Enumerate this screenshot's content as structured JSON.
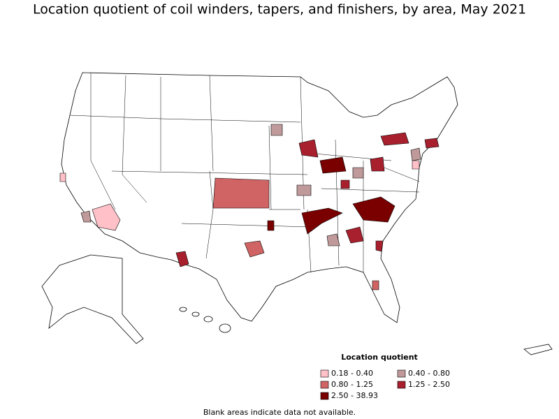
{
  "title": "Location quotient of coil winders, tapers, and finishers, by area, May 2021",
  "legend": {
    "title": "Location quotient",
    "items": [
      {
        "label": "0.18 - 0.40",
        "color": "#ffc0c8"
      },
      {
        "label": "0.40 - 0.80",
        "color": "#c09a9a"
      },
      {
        "label": "0.80 - 1.25",
        "color": "#d06464"
      },
      {
        "label": "1.25 - 2.50",
        "color": "#a8202e"
      },
      {
        "label": "2.50 - 38.93",
        "color": "#7a0000"
      }
    ]
  },
  "footnote": "Blank areas indicate data not available."
}
